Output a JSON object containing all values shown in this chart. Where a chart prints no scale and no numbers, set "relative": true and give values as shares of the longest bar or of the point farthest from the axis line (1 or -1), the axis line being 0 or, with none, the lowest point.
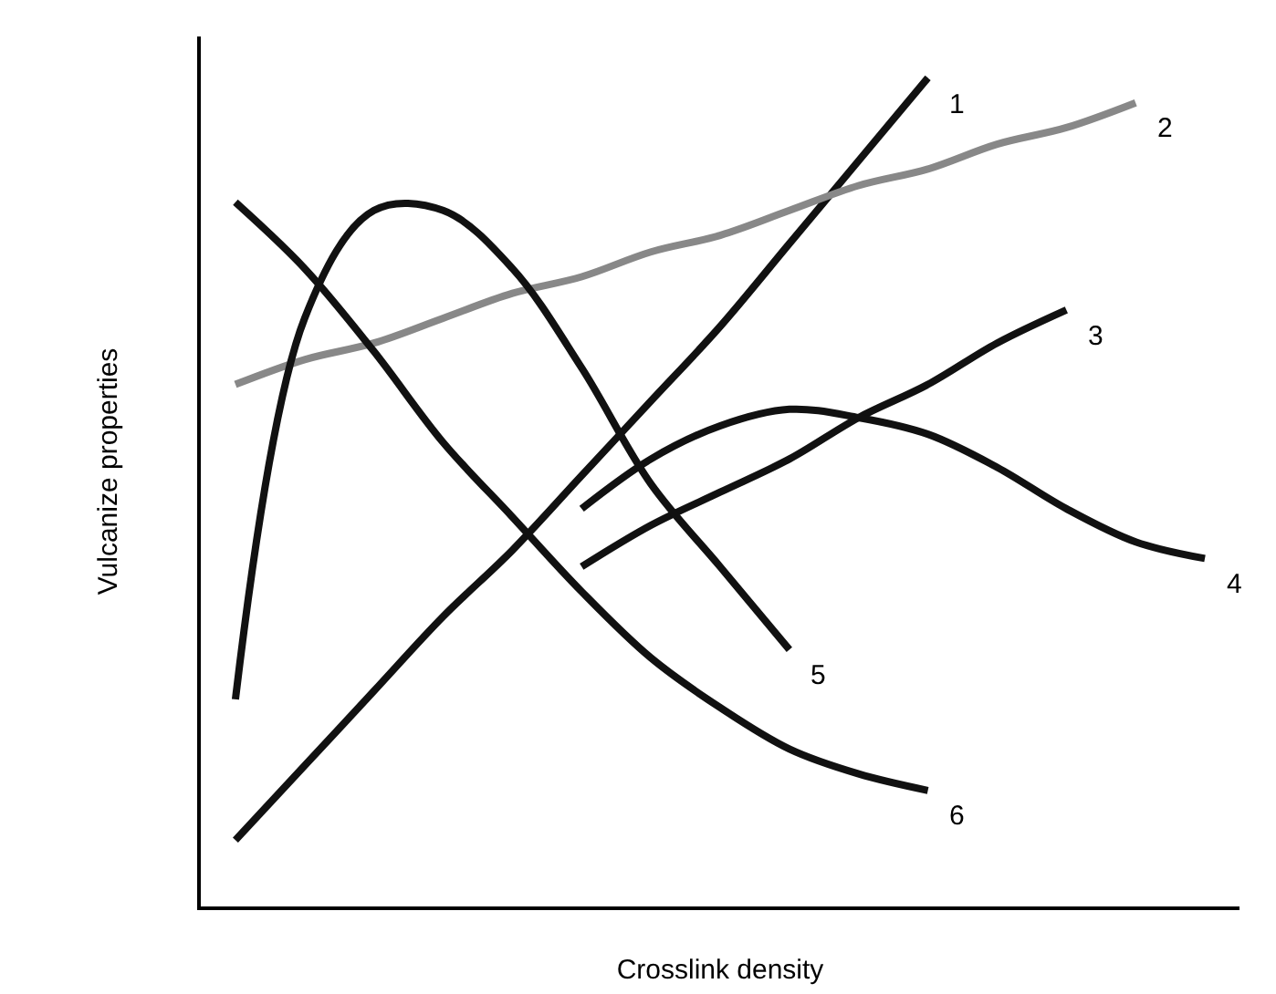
{
  "chart_data": {
    "type": "line",
    "relative": true,
    "xlabel": "Crosslink density",
    "ylabel": "Vulcanize properties",
    "categories": [
      null,
      null,
      null,
      null,
      null,
      null,
      null,
      null,
      null,
      null,
      null,
      null,
      null,
      null,
      null
    ],
    "legend": false,
    "marker": "none",
    "line_style": "solid",
    "series": [
      {
        "name": "1",
        "color": "#111111",
        "values": [
          0.08,
          0.17,
          0.26,
          0.35,
          0.43,
          0.52,
          0.61,
          0.7,
          0.8,
          0.9,
          1.0,
          null,
          null,
          null,
          null
        ]
      },
      {
        "name": "2",
        "color": "#888888",
        "values": [
          0.63,
          0.66,
          0.68,
          0.71,
          0.74,
          0.76,
          0.79,
          0.81,
          0.84,
          0.87,
          0.89,
          0.92,
          0.94,
          0.97,
          null
        ]
      },
      {
        "name": "3",
        "color": "#111111",
        "values": [
          null,
          null,
          null,
          null,
          null,
          0.41,
          0.46,
          0.5,
          0.54,
          0.59,
          0.63,
          0.68,
          0.72,
          null,
          null
        ]
      },
      {
        "name": "4",
        "color": "#111111",
        "values": [
          null,
          null,
          null,
          null,
          null,
          0.48,
          0.54,
          0.58,
          0.6,
          0.59,
          0.57,
          0.53,
          0.48,
          0.44,
          0.42
        ]
      },
      {
        "name": "5",
        "color": "#111111",
        "values": [
          0.25,
          0.71,
          0.84,
          0.84,
          0.77,
          0.65,
          0.51,
          0.41,
          0.31,
          null,
          null,
          null,
          null,
          null,
          null
        ]
      },
      {
        "name": "6",
        "color": "#111111",
        "values": [
          0.85,
          0.77,
          0.67,
          0.56,
          0.47,
          0.38,
          0.3,
          0.24,
          0.19,
          0.16,
          0.14,
          null,
          null,
          null,
          null
        ]
      }
    ]
  }
}
